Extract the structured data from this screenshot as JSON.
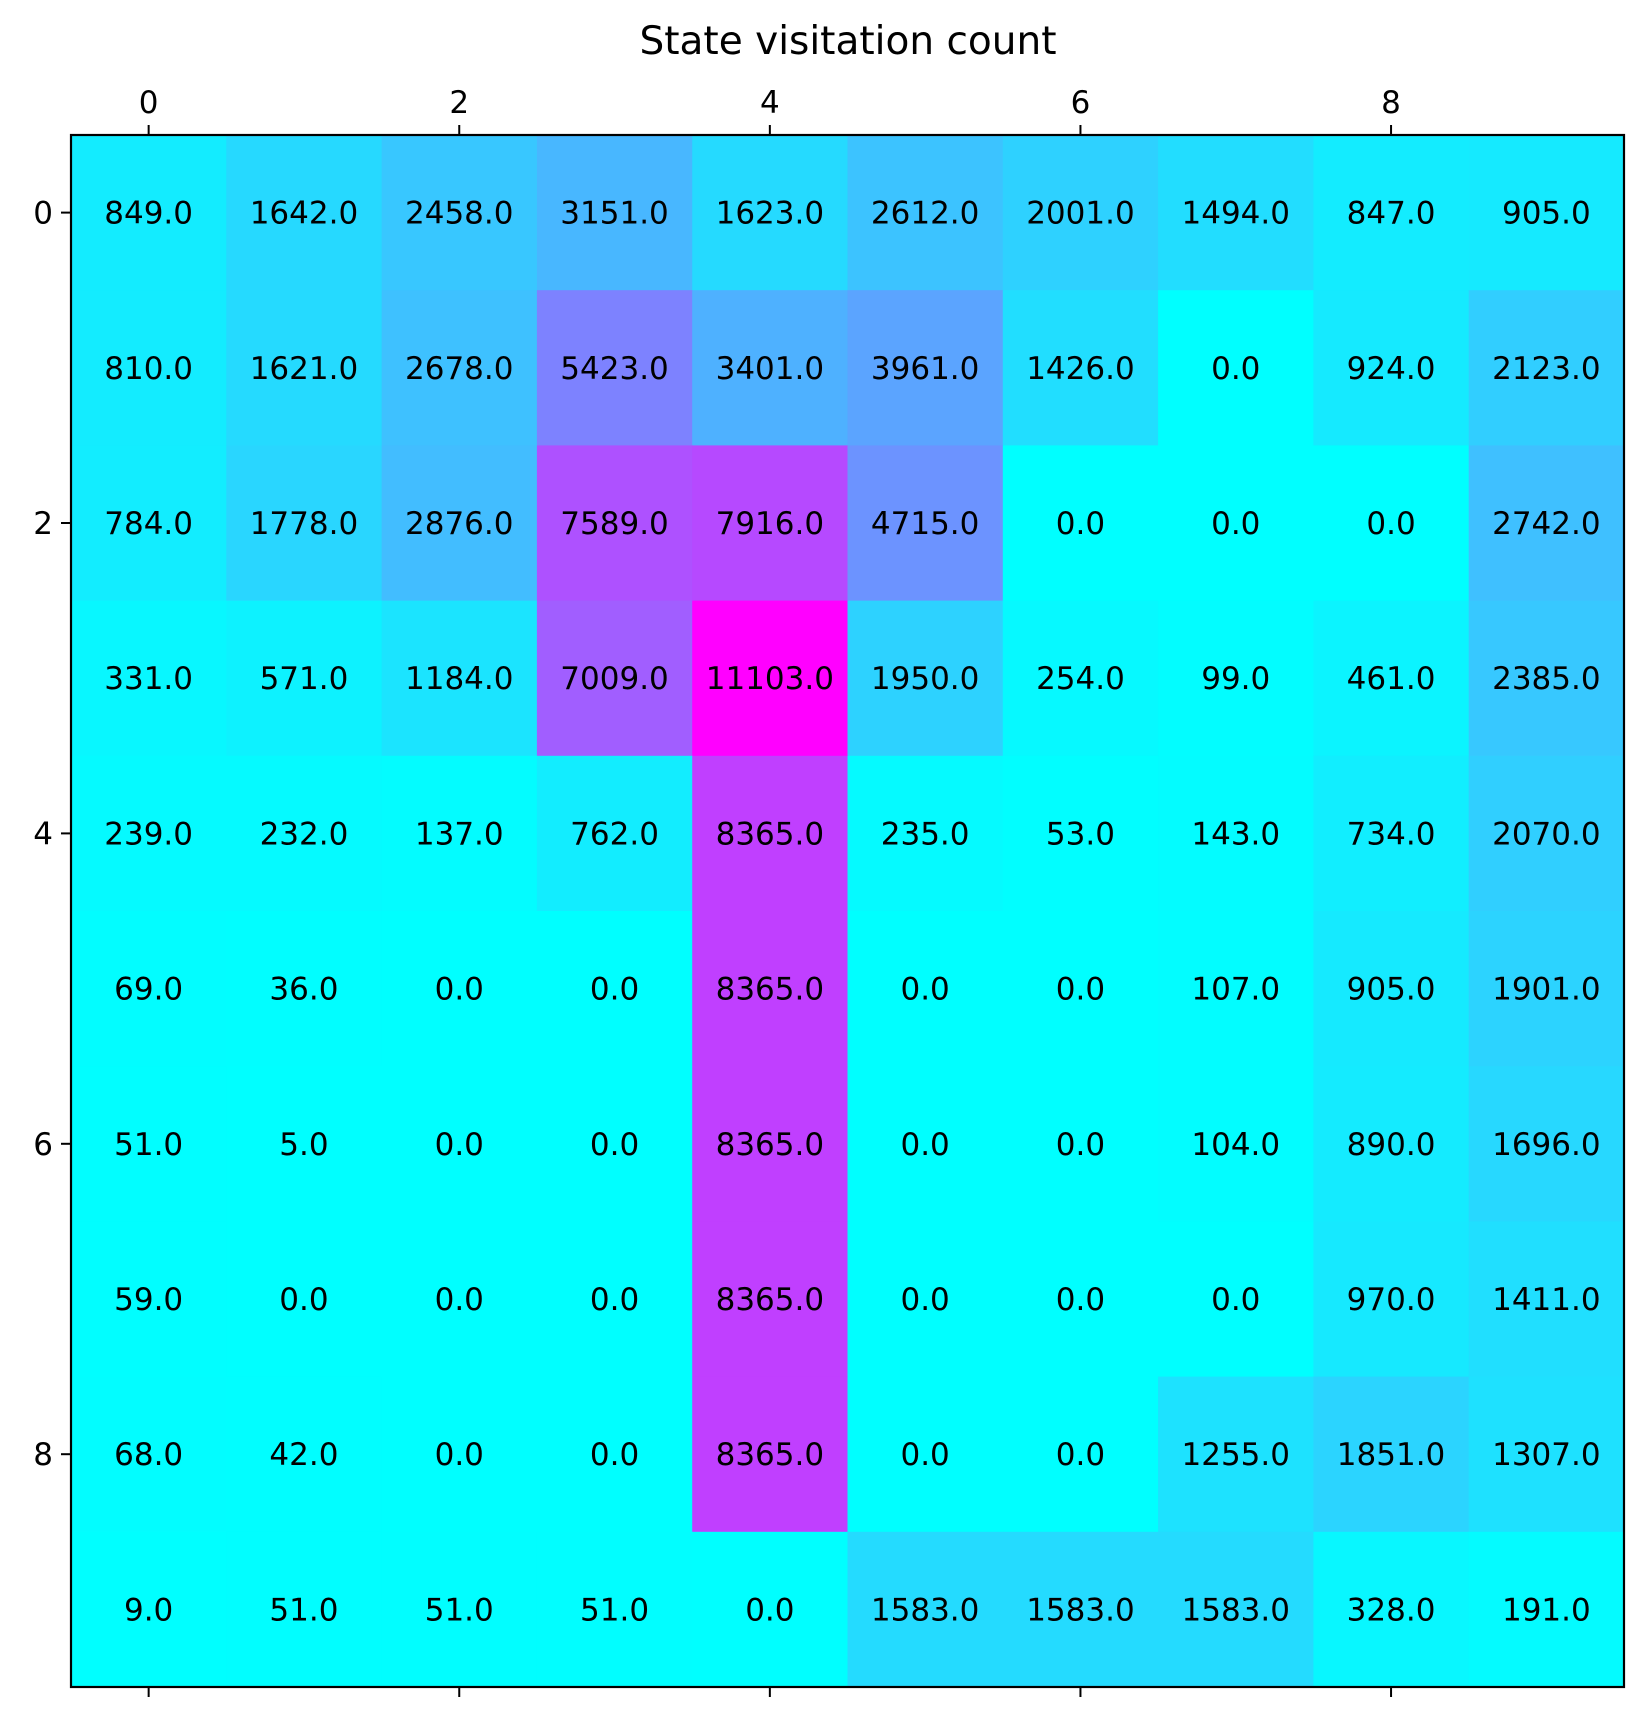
{
  "chart_data": {
    "type": "heatmap",
    "title": "State visitation count",
    "colormap": "cool",
    "colormap_colors": [
      "#00ffff",
      "#ff00ff"
    ],
    "vmin": 0,
    "vmax": 11103,
    "x_axis_position": "top",
    "x_ticks": [
      0,
      2,
      4,
      6,
      8
    ],
    "y_ticks": [
      0,
      2,
      4,
      6,
      8
    ],
    "x_tick_labels": [
      "0",
      "2",
      "4",
      "6",
      "8"
    ],
    "y_tick_labels": [
      "0",
      "2",
      "4",
      "6",
      "8"
    ],
    "values": [
      [
        849,
        1642,
        2458,
        3151,
        1623,
        2612,
        2001,
        1494,
        847,
        905
      ],
      [
        810,
        1621,
        2678,
        5423,
        3401,
        3961,
        1426,
        0,
        924,
        2123
      ],
      [
        784,
        1778,
        2876,
        7589,
        7916,
        4715,
        0,
        0,
        0,
        2742
      ],
      [
        331,
        571,
        1184,
        7009,
        11103,
        1950,
        254,
        99,
        461,
        2385
      ],
      [
        239,
        232,
        137,
        762,
        8365,
        235,
        53,
        143,
        734,
        2070
      ],
      [
        69,
        36,
        0,
        0,
        8365,
        0,
        0,
        107,
        905,
        1901
      ],
      [
        51,
        5,
        0,
        0,
        8365,
        0,
        0,
        104,
        890,
        1696
      ],
      [
        59,
        0,
        0,
        0,
        8365,
        0,
        0,
        0,
        970,
        1411
      ],
      [
        68,
        42,
        0,
        0,
        8365,
        0,
        0,
        1255,
        1851,
        1307
      ],
      [
        9,
        51,
        51,
        51,
        0,
        1583,
        1583,
        1583,
        328,
        191
      ]
    ]
  }
}
